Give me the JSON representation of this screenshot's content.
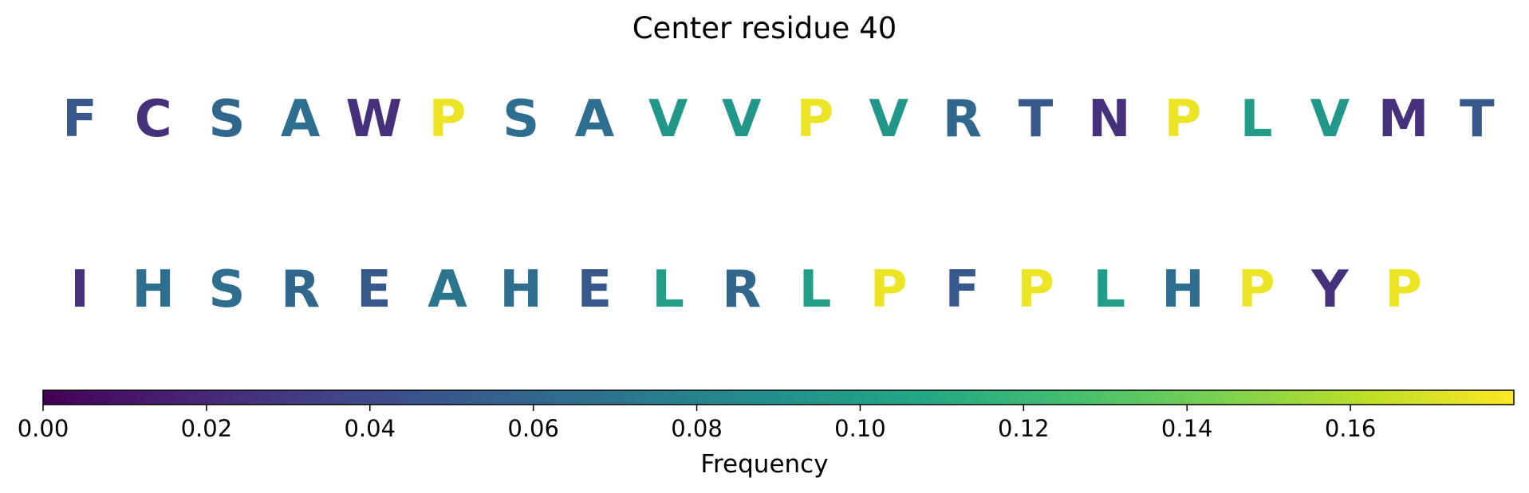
{
  "chart_data": {
    "type": "table",
    "title": "Center residue 40",
    "rows": [
      [
        {
          "letter": "F",
          "frequency": 0.05
        },
        {
          "letter": "C",
          "frequency": 0.025
        },
        {
          "letter": "S",
          "frequency": 0.06
        },
        {
          "letter": "A",
          "frequency": 0.065
        },
        {
          "letter": "W",
          "frequency": 0.025
        },
        {
          "letter": "P",
          "frequency": 0.175
        },
        {
          "letter": "S",
          "frequency": 0.065
        },
        {
          "letter": "A",
          "frequency": 0.065
        },
        {
          "letter": "V",
          "frequency": 0.095
        },
        {
          "letter": "V",
          "frequency": 0.095
        },
        {
          "letter": "P",
          "frequency": 0.175
        },
        {
          "letter": "V",
          "frequency": 0.095
        },
        {
          "letter": "R",
          "frequency": 0.06
        },
        {
          "letter": "T",
          "frequency": 0.05
        },
        {
          "letter": "N",
          "frequency": 0.025
        },
        {
          "letter": "P",
          "frequency": 0.175
        },
        {
          "letter": "L",
          "frequency": 0.1
        },
        {
          "letter": "V",
          "frequency": 0.095
        },
        {
          "letter": "M",
          "frequency": 0.025
        },
        {
          "letter": "T",
          "frequency": 0.05
        }
      ],
      [
        {
          "letter": "I",
          "frequency": 0.025
        },
        {
          "letter": "H",
          "frequency": 0.065
        },
        {
          "letter": "S",
          "frequency": 0.065
        },
        {
          "letter": "R",
          "frequency": 0.06
        },
        {
          "letter": "E",
          "frequency": 0.05
        },
        {
          "letter": "A",
          "frequency": 0.07
        },
        {
          "letter": "H",
          "frequency": 0.065
        },
        {
          "letter": "E",
          "frequency": 0.05
        },
        {
          "letter": "L",
          "frequency": 0.1
        },
        {
          "letter": "R",
          "frequency": 0.06
        },
        {
          "letter": "L",
          "frequency": 0.1
        },
        {
          "letter": "P",
          "frequency": 0.175
        },
        {
          "letter": "F",
          "frequency": 0.05
        },
        {
          "letter": "P",
          "frequency": 0.175
        },
        {
          "letter": "L",
          "frequency": 0.1
        },
        {
          "letter": "H",
          "frequency": 0.065
        },
        {
          "letter": "P",
          "frequency": 0.175
        },
        {
          "letter": "Y",
          "frequency": 0.025
        },
        {
          "letter": "P",
          "frequency": 0.175
        }
      ]
    ],
    "colorbar": {
      "label": "Frequency",
      "colormap": "viridis",
      "range": [
        0,
        0.18
      ],
      "ticks": [
        0.0,
        0.02,
        0.04,
        0.06,
        0.08,
        0.1,
        0.12,
        0.14,
        0.16
      ],
      "tick_labels": [
        "0.00",
        "0.02",
        "0.04",
        "0.06",
        "0.08",
        "0.10",
        "0.12",
        "0.14",
        "0.16"
      ],
      "orientation": "horizontal",
      "placement": "bottom"
    }
  }
}
